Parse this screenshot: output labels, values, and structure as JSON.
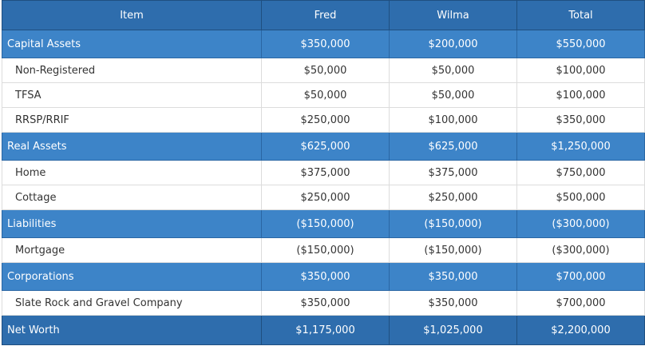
{
  "header": {
    "item": "Item",
    "fred": "Fred",
    "wilma": "Wilma",
    "total": "Total"
  },
  "rows": [
    {
      "type": "group",
      "label": "Capital Assets",
      "fred": "$350,000",
      "wilma": "$200,000",
      "total": "$550,000"
    },
    {
      "type": "detail",
      "label": "Non-Registered",
      "fred": "$50,000",
      "wilma": "$50,000",
      "total": "$100,000"
    },
    {
      "type": "detail",
      "label": "TFSA",
      "fred": "$50,000",
      "wilma": "$50,000",
      "total": "$100,000"
    },
    {
      "type": "detail",
      "label": "RRSP/RRIF",
      "fred": "$250,000",
      "wilma": "$100,000",
      "total": "$350,000"
    },
    {
      "type": "group",
      "label": "Real Assets",
      "fred": "$625,000",
      "wilma": "$625,000",
      "total": "$1,250,000"
    },
    {
      "type": "detail",
      "label": "Home",
      "fred": "$375,000",
      "wilma": "$375,000",
      "total": "$750,000"
    },
    {
      "type": "detail",
      "label": "Cottage",
      "fred": "$250,000",
      "wilma": "$250,000",
      "total": "$500,000"
    },
    {
      "type": "group",
      "label": "Liabilities",
      "fred": "($150,000)",
      "wilma": "($150,000)",
      "total": "($300,000)"
    },
    {
      "type": "detail",
      "label": "Mortgage",
      "fred": "($150,000)",
      "wilma": "($150,000)",
      "total": "($300,000)"
    },
    {
      "type": "group",
      "label": "Corporations",
      "fred": "$350,000",
      "wilma": "$350,000",
      "total": "$700,000"
    },
    {
      "type": "detail",
      "label": "Slate Rock and Gravel Company",
      "fred": "$350,000",
      "wilma": "$350,000",
      "total": "$700,000"
    }
  ],
  "net_worth": {
    "label": "Net Worth",
    "fred": "$1,175,000",
    "wilma": "$1,025,000",
    "total": "$2,200,000"
  },
  "colors": {
    "header_bg": "#2e6dad",
    "group_bg": "#3d84c8",
    "negative_text": "#9b59b6"
  }
}
